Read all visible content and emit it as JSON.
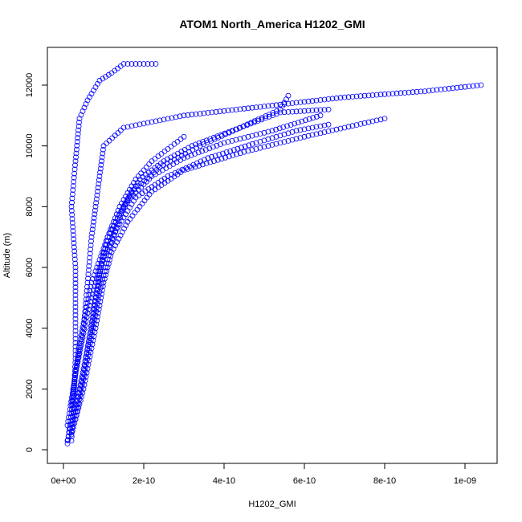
{
  "chart_data": {
    "type": "scatter",
    "title": "ATOM1 North_America H1202_GMI",
    "xlabel": "H1202_GMI",
    "ylabel": "Altitude (m)",
    "xlim": [
      0,
      1.04e-09
    ],
    "ylim": [
      200,
      12800
    ],
    "x_ticks": [
      0,
      2e-10,
      4e-10,
      6e-10,
      8e-10,
      1e-09
    ],
    "x_tick_labels": [
      "0e+00",
      "2e-10",
      "4e-10",
      "6e-10",
      "8e-10",
      "1e-09"
    ],
    "y_ticks": [
      0,
      2000,
      4000,
      6000,
      8000,
      10000,
      12000
    ],
    "y_tick_labels": [
      "0",
      "2000",
      "4000",
      "6000",
      "8000",
      "10000",
      "12000"
    ],
    "marker": "open-circle",
    "color": "#0000ff",
    "series": [
      {
        "values": [
          [
            1e-11,
            200
          ],
          [
            2e-11,
            1200
          ],
          [
            3e-11,
            2500
          ],
          [
            5e-11,
            4000
          ],
          [
            6e-11,
            5500
          ],
          [
            7e-11,
            7000
          ],
          [
            8e-11,
            8000
          ],
          [
            9e-11,
            9000
          ],
          [
            1e-10,
            10000
          ],
          [
            1.5e-10,
            10600
          ],
          [
            3e-10,
            11000
          ],
          [
            5e-10,
            11300
          ],
          [
            7e-10,
            11600
          ],
          [
            9e-10,
            11800
          ],
          [
            1.04e-09,
            12000
          ]
        ]
      },
      {
        "values": [
          [
            2e-11,
            500
          ],
          [
            5e-11,
            2000
          ],
          [
            8e-11,
            4000
          ],
          [
            1e-10,
            5500
          ],
          [
            1.2e-10,
            6500
          ],
          [
            1.6e-10,
            7500
          ],
          [
            2.2e-10,
            8500
          ],
          [
            3e-10,
            9200
          ],
          [
            4.5e-10,
            9800
          ],
          [
            6e-10,
            10300
          ],
          [
            7e-10,
            10600
          ],
          [
            8e-10,
            10900
          ]
        ]
      },
      {
        "values": [
          [
            1e-11,
            800
          ],
          [
            3e-11,
            2500
          ],
          [
            6e-11,
            4500
          ],
          [
            9e-11,
            6000
          ],
          [
            1.3e-10,
            7200
          ],
          [
            1.8e-10,
            8300
          ],
          [
            2.6e-10,
            9000
          ],
          [
            3.6e-10,
            9600
          ],
          [
            4.8e-10,
            10100
          ],
          [
            5.8e-10,
            10500
          ],
          [
            6.6e-10,
            10700
          ]
        ]
      },
      {
        "values": [
          [
            2e-11,
            1500
          ],
          [
            4e-11,
            3500
          ],
          [
            7e-11,
            5500
          ],
          [
            1.1e-10,
            7000
          ],
          [
            1.6e-10,
            8200
          ],
          [
            2.2e-10,
            9000
          ],
          [
            3e-10,
            9600
          ],
          [
            4e-10,
            10100
          ],
          [
            5.2e-10,
            10500
          ],
          [
            6.4e-10,
            11000
          ]
        ]
      },
      {
        "values": [
          [
            3e-11,
            1000
          ],
          [
            6e-11,
            3000
          ],
          [
            9e-11,
            5200
          ],
          [
            1.2e-10,
            6800
          ],
          [
            1.5e-10,
            8000
          ],
          [
            1.9e-10,
            8900
          ],
          [
            2.5e-10,
            9500
          ],
          [
            3.2e-10,
            10000
          ],
          [
            4.2e-10,
            10500
          ],
          [
            5.4e-10,
            11100
          ],
          [
            6.6e-10,
            11200
          ]
        ]
      },
      {
        "values": [
          [
            1e-11,
            300
          ],
          [
            4e-11,
            2000
          ],
          [
            7e-11,
            4000
          ],
          [
            9e-11,
            5800
          ],
          [
            1.1e-10,
            7000
          ],
          [
            1.4e-10,
            8000
          ],
          [
            1.8e-10,
            8900
          ],
          [
            2.2e-10,
            9500
          ],
          [
            2.6e-10,
            9900
          ],
          [
            3e-10,
            10300
          ]
        ]
      },
      {
        "values": [
          [
            2e-11,
            600
          ],
          [
            5e-11,
            2500
          ],
          [
            8e-11,
            5000
          ],
          [
            1e-10,
            6500
          ],
          [
            1.3e-10,
            7500
          ],
          [
            1.7e-10,
            8500
          ],
          [
            2.4e-10,
            9300
          ],
          [
            3.4e-10,
            10000
          ],
          [
            4.4e-10,
            10600
          ],
          [
            5.4e-10,
            11200
          ],
          [
            5.6e-10,
            11650
          ]
        ]
      },
      {
        "values": [
          [
            2e-11,
            300
          ],
          [
            3e-11,
            3000
          ],
          [
            3e-11,
            6000
          ],
          [
            2e-11,
            8000
          ],
          [
            3e-11,
            9500
          ],
          [
            4e-11,
            10900
          ],
          [
            6e-11,
            11500
          ],
          [
            9e-11,
            12150
          ],
          [
            1.2e-10,
            12400
          ],
          [
            1.5e-10,
            12700
          ],
          [
            2.3e-10,
            12700
          ]
        ]
      }
    ]
  }
}
